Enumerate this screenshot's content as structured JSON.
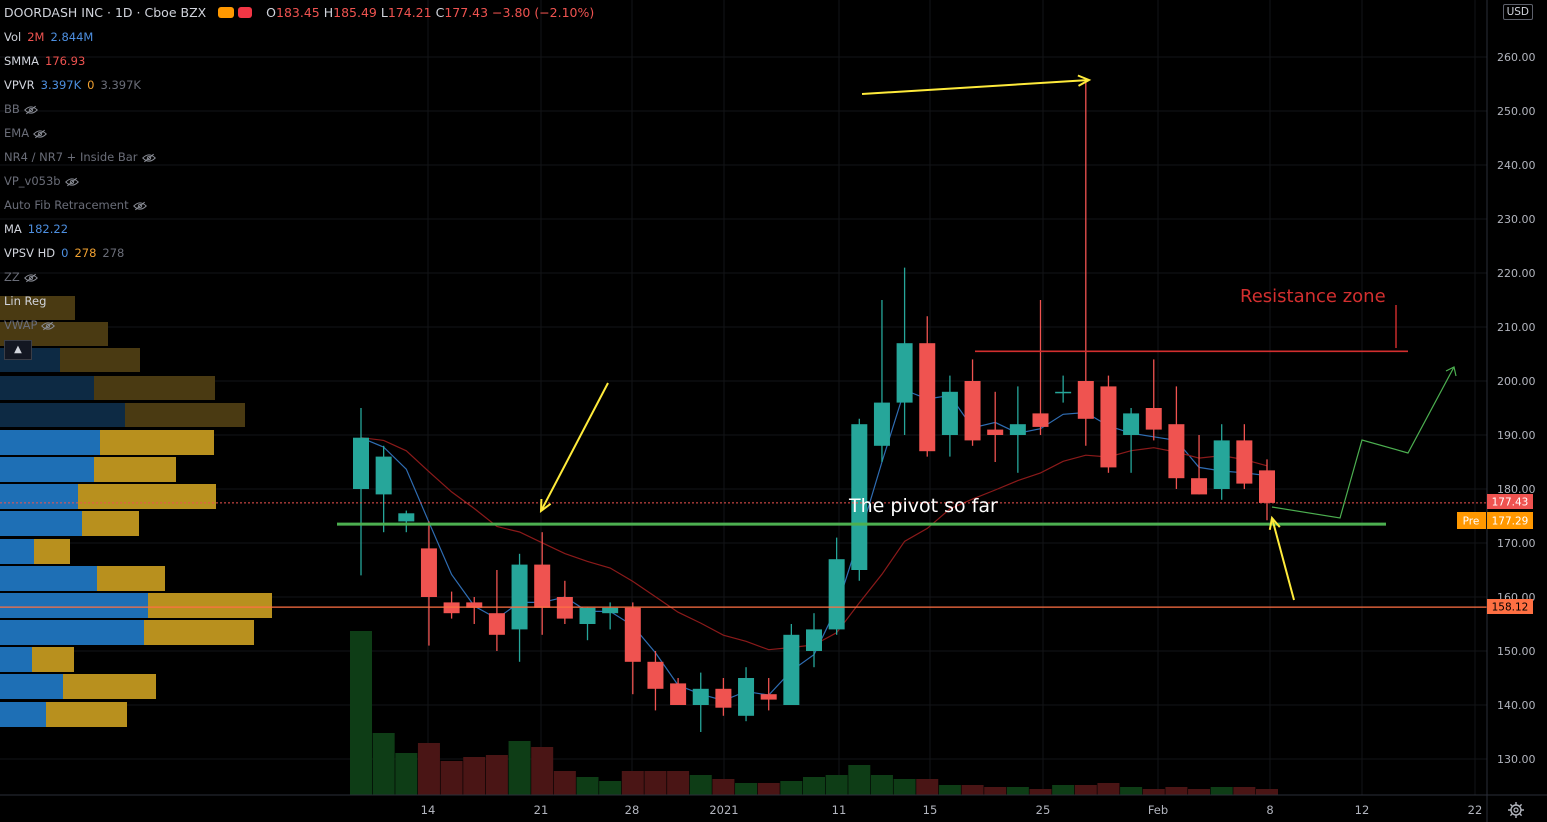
{
  "header": {
    "symbol": "DOORDASH INC",
    "interval": "1D",
    "exchange": "Cboe BZX",
    "open_label": "O",
    "open": "183.45",
    "high_label": "H",
    "high": "185.49",
    "low_label": "L",
    "low": "174.21",
    "close_label": "C",
    "close": "177.43",
    "change": "−3.80 (−2.10%)"
  },
  "indicators": [
    {
      "name": "Vol",
      "v1": "2M",
      "v2": "2.844M",
      "hidden": false
    },
    {
      "name": "SMMA",
      "v1": "176.93",
      "hidden": false
    },
    {
      "name": "VPVR",
      "v1": "3.397K",
      "v2": "0",
      "v3": "3.397K",
      "hidden": false
    },
    {
      "name": "BB",
      "hidden": true
    },
    {
      "name": "EMA",
      "hidden": true
    },
    {
      "name": "NR4 / NR7 + Inside Bar",
      "hidden": true
    },
    {
      "name": "VP_v053b",
      "hidden": true
    },
    {
      "name": "Auto Fib Retracement",
      "hidden": true
    },
    {
      "name": "MA",
      "v1": "182.22",
      "hidden": false
    },
    {
      "name": "VPSV HD",
      "v1": "0",
      "v2": "278",
      "v3": "278",
      "hidden": false
    },
    {
      "name": "ZZ",
      "hidden": true
    },
    {
      "name": "Lin Reg",
      "hidden": false
    },
    {
      "name": "VWAP",
      "hidden": true
    }
  ],
  "currency": "USD",
  "annotations": {
    "pivot_text": "The pivot so far",
    "resistance_text": "Resistance zone"
  },
  "price_badges": {
    "last": "177.43",
    "pre_label": "Pre",
    "pre": "177.29",
    "support": "158.12"
  },
  "colors": {
    "up": "#26a69a",
    "down": "#ef5350",
    "pivot_line": "#4caf50",
    "resistance": "#d32f2f",
    "arrow": "#ffeb3b",
    "support_line": "#ff7043"
  },
  "chart_data": {
    "type": "candlestick",
    "y_axis": {
      "ticks": [
        130,
        140,
        150,
        160,
        170,
        180,
        190,
        200,
        210,
        220,
        230,
        240,
        250,
        260
      ],
      "range": [
        122,
        268
      ]
    },
    "x_tick_labels": [
      "14",
      "21",
      "28",
      "2021",
      "11",
      "15",
      "25",
      "Feb",
      "8",
      "12",
      "22"
    ],
    "candles": [
      {
        "o": 180,
        "h": 195,
        "l": 164,
        "c": 189.5
      },
      {
        "o": 179,
        "h": 188,
        "l": 172,
        "c": 186
      },
      {
        "o": 174,
        "h": 176,
        "l": 172,
        "c": 175.5
      },
      {
        "o": 169,
        "h": 174,
        "l": 151,
        "c": 160
      },
      {
        "o": 159,
        "h": 161,
        "l": 156,
        "c": 157
      },
      {
        "o": 159,
        "h": 160,
        "l": 155,
        "c": 158
      },
      {
        "o": 157,
        "h": 165,
        "l": 150,
        "c": 153
      },
      {
        "o": 154,
        "h": 168,
        "l": 148,
        "c": 166
      },
      {
        "o": 166,
        "h": 172,
        "l": 153,
        "c": 158
      },
      {
        "o": 160,
        "h": 163,
        "l": 155,
        "c": 156
      },
      {
        "o": 155,
        "h": 158,
        "l": 152,
        "c": 158
      },
      {
        "o": 157,
        "h": 159,
        "l": 154,
        "c": 158
      },
      {
        "o": 158,
        "h": 159,
        "l": 142,
        "c": 148
      },
      {
        "o": 148,
        "h": 150,
        "l": 139,
        "c": 143
      },
      {
        "o": 144,
        "h": 145,
        "l": 140,
        "c": 140
      },
      {
        "o": 140,
        "h": 146,
        "l": 135,
        "c": 143
      },
      {
        "o": 143,
        "h": 145,
        "l": 138,
        "c": 139.5
      },
      {
        "o": 138,
        "h": 147,
        "l": 137,
        "c": 145
      },
      {
        "o": 142,
        "h": 145,
        "l": 139,
        "c": 141
      },
      {
        "o": 140,
        "h": 155,
        "l": 140,
        "c": 153
      },
      {
        "o": 150,
        "h": 157,
        "l": 147,
        "c": 154
      },
      {
        "o": 154,
        "h": 171,
        "l": 153,
        "c": 167
      },
      {
        "o": 165,
        "h": 193,
        "l": 163,
        "c": 192
      },
      {
        "o": 188,
        "h": 215,
        "l": 185,
        "c": 196
      },
      {
        "o": 196,
        "h": 221,
        "l": 190,
        "c": 207
      },
      {
        "o": 207,
        "h": 212,
        "l": 186,
        "c": 187
      },
      {
        "o": 190,
        "h": 201,
        "l": 186,
        "c": 198
      },
      {
        "o": 200,
        "h": 204,
        "l": 188,
        "c": 189
      },
      {
        "o": 191,
        "h": 198,
        "l": 185,
        "c": 190
      },
      {
        "o": 190,
        "h": 199,
        "l": 183,
        "c": 192
      },
      {
        "o": 194,
        "h": 215,
        "l": 190,
        "c": 191.5
      },
      {
        "o": 198,
        "h": 201,
        "l": 196,
        "c": 198
      },
      {
        "o": 200,
        "h": 256,
        "l": 188,
        "c": 193
      },
      {
        "o": 199,
        "h": 201,
        "l": 183,
        "c": 184
      },
      {
        "o": 190,
        "h": 195,
        "l": 183,
        "c": 194
      },
      {
        "o": 195,
        "h": 204,
        "l": 189,
        "c": 191
      },
      {
        "o": 192,
        "h": 199,
        "l": 180,
        "c": 182
      },
      {
        "o": 182,
        "h": 190,
        "l": 179,
        "c": 179
      },
      {
        "o": 180,
        "h": 192,
        "l": 178,
        "c": 189
      },
      {
        "o": 189,
        "h": 192,
        "l": 180,
        "c": 181
      },
      {
        "o": 183.45,
        "h": 185.49,
        "l": 174.21,
        "c": 177.43
      }
    ],
    "volume_relative": [
      0.82,
      0.31,
      0.21,
      0.26,
      0.17,
      0.19,
      0.2,
      0.27,
      0.24,
      0.12,
      0.09,
      0.07,
      0.12,
      0.12,
      0.12,
      0.1,
      0.08,
      0.06,
      0.06,
      0.07,
      0.09,
      0.1,
      0.15,
      0.1,
      0.08,
      0.08,
      0.05,
      0.05,
      0.04,
      0.04,
      0.03,
      0.05,
      0.05,
      0.06,
      0.04,
      0.03,
      0.04,
      0.03,
      0.04,
      0.04,
      0.03
    ],
    "levels": {
      "pivot": 173.5,
      "resistance": 205.5,
      "support": 158.12,
      "last": 177.43
    }
  }
}
